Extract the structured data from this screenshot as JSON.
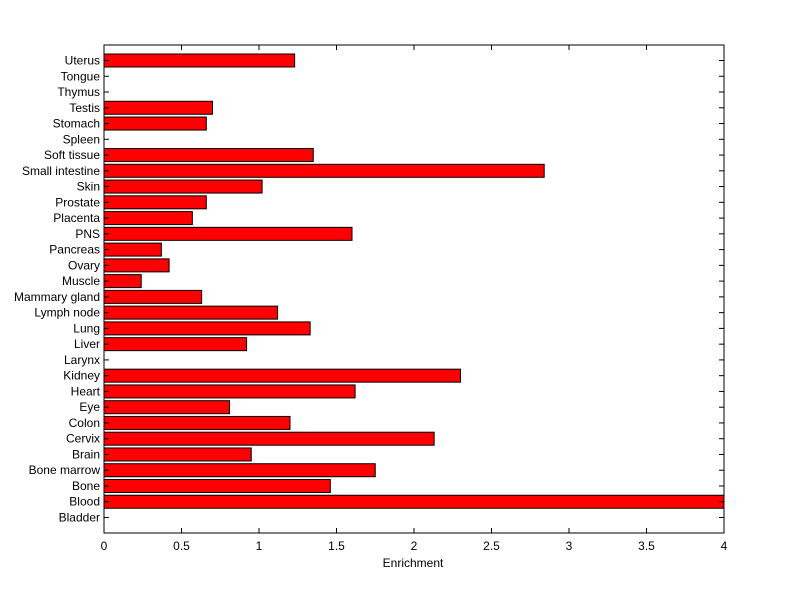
{
  "chart_data": {
    "type": "bar",
    "orientation": "horizontal",
    "title": "",
    "xlabel": "Enrichment",
    "ylabel": "",
    "xlim": [
      0,
      4
    ],
    "xticks": [
      "0",
      "0.5",
      "1",
      "1.5",
      "2",
      "2.5",
      "3",
      "3.5",
      "4"
    ],
    "categories": [
      "Bladder",
      "Blood",
      "Bone",
      "Bone marrow",
      "Brain",
      "Cervix",
      "Colon",
      "Eye",
      "Heart",
      "Kidney",
      "Larynx",
      "Liver",
      "Lung",
      "Lymph node",
      "Mammary gland",
      "Muscle",
      "Ovary",
      "Pancreas",
      "PNS",
      "Placenta",
      "Prostate",
      "Skin",
      "Small intestine",
      "Soft tissue",
      "Spleen",
      "Stomach",
      "Testis",
      "Thymus",
      "Tongue",
      "Uterus"
    ],
    "values": [
      0,
      4.0,
      1.46,
      1.75,
      0.95,
      2.13,
      1.2,
      0.81,
      1.62,
      2.3,
      0,
      0.92,
      1.33,
      1.12,
      0.63,
      0.24,
      0.42,
      0.37,
      1.6,
      0.57,
      0.66,
      1.02,
      2.84,
      1.35,
      0,
      0.66,
      0.7,
      0,
      0,
      1.23
    ],
    "grid": false,
    "legend": "none",
    "bar_color": "#ff0000",
    "bar_edge_color": "#000000"
  }
}
